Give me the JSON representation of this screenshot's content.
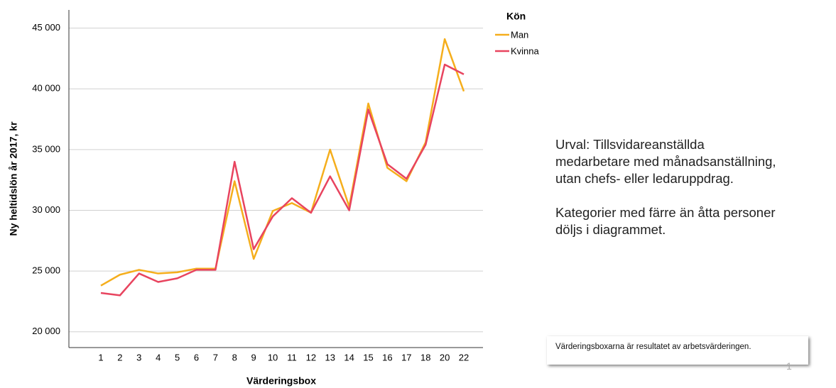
{
  "chart_data": {
    "type": "line",
    "x_label": "Värderingsbox",
    "y_label": "Ny heltidslön år 2017, kr",
    "legend_title": "Kön",
    "categories": [
      "1",
      "2",
      "3",
      "4",
      "5",
      "6",
      "7",
      "8",
      "9",
      "10",
      "11",
      "12",
      "13",
      "14",
      "15",
      "16",
      "17",
      "18",
      "20",
      "22"
    ],
    "series": [
      {
        "name": "Man",
        "color": "#f5ae1c",
        "values": [
          23800,
          24700,
          25100,
          24800,
          24900,
          25200,
          25200,
          32400,
          26000,
          29950,
          30600,
          29800,
          35000,
          30300,
          38800,
          33500,
          32400,
          35600,
          44100,
          39800
        ]
      },
      {
        "name": "Kvinna",
        "color": "#e8445f",
        "values": [
          23200,
          23000,
          24800,
          24100,
          24400,
          25100,
          25100,
          34000,
          26800,
          29500,
          31000,
          29800,
          32800,
          30000,
          38300,
          33800,
          32600,
          35400,
          42000,
          41200
        ]
      }
    ],
    "ylim": [
      18700,
      46500
    ],
    "yticks": [
      {
        "value": 20000,
        "label": "20 000"
      },
      {
        "value": 25000,
        "label": "25 000"
      },
      {
        "value": 30000,
        "label": "30 000"
      },
      {
        "value": 35000,
        "label": "35 000"
      },
      {
        "value": 40000,
        "label": "40 000"
      },
      {
        "value": 45000,
        "label": "45 000"
      }
    ],
    "grid": true,
    "legend": "upper right"
  },
  "side_text": {
    "paragraphs": [
      [
        "Urval: Tillsvidareanställda",
        "medarbetare med månadsanställning,",
        "utan chefs- eller ledaruppdrag."
      ],
      [
        "Kategorier med färre än åtta personer",
        "döljs i diagrammet."
      ]
    ]
  },
  "note": "Värderingsboxarna är resultatet av arbetsvärderingen.",
  "page_number": "1"
}
